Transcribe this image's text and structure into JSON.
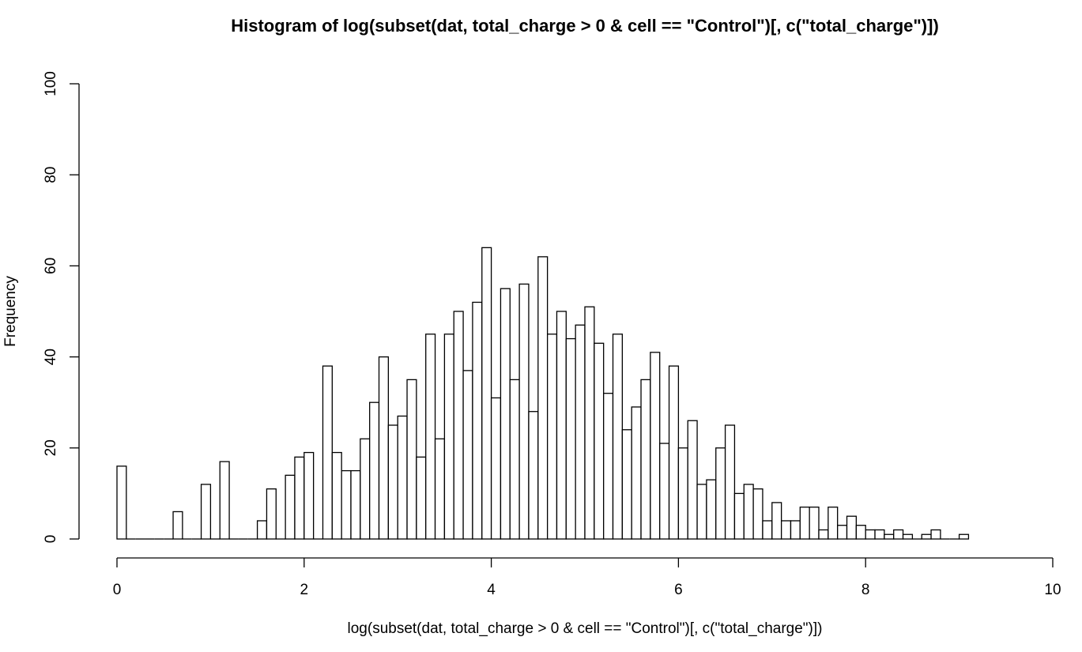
{
  "chart_data": {
    "type": "bar",
    "title": "Histogram of log(subset(dat, total_charge > 0 & cell == \"Control\")[, c(\"total_charge\")])",
    "xlabel": "log(subset(dat, total_charge > 0 & cell == \"Control\")[, c(\"total_charge\")])",
    "ylabel": "Frequency",
    "xlim": [
      0,
      10
    ],
    "ylim": [
      0,
      100
    ],
    "x_ticks": [
      0,
      2,
      4,
      6,
      8,
      10
    ],
    "y_ticks": [
      0,
      20,
      40,
      60,
      80,
      100
    ],
    "x_tick_labels": [
      "0",
      "2",
      "4",
      "6",
      "8",
      "10"
    ],
    "y_tick_labels": [
      "0",
      "20",
      "40",
      "60",
      "80",
      "100"
    ],
    "grid": false,
    "bin_start": 0,
    "bin_width": 0.1,
    "values": [
      16,
      0,
      0,
      0,
      0,
      0,
      6,
      0,
      0,
      12,
      0,
      17,
      0,
      0,
      0,
      4,
      11,
      0,
      14,
      18,
      19,
      0,
      38,
      19,
      15,
      15,
      22,
      30,
      40,
      25,
      27,
      35,
      18,
      45,
      22,
      45,
      50,
      37,
      52,
      64,
      31,
      55,
      35,
      56,
      28,
      62,
      45,
      50,
      44,
      47,
      51,
      43,
      32,
      45,
      24,
      29,
      35,
      41,
      21,
      38,
      20,
      26,
      12,
      13,
      20,
      25,
      10,
      12,
      11,
      4,
      8,
      4,
      4,
      7,
      7,
      2,
      7,
      3,
      5,
      3,
      2,
      2,
      1,
      2,
      1,
      0,
      1,
      2,
      0,
      0,
      1
    ]
  }
}
